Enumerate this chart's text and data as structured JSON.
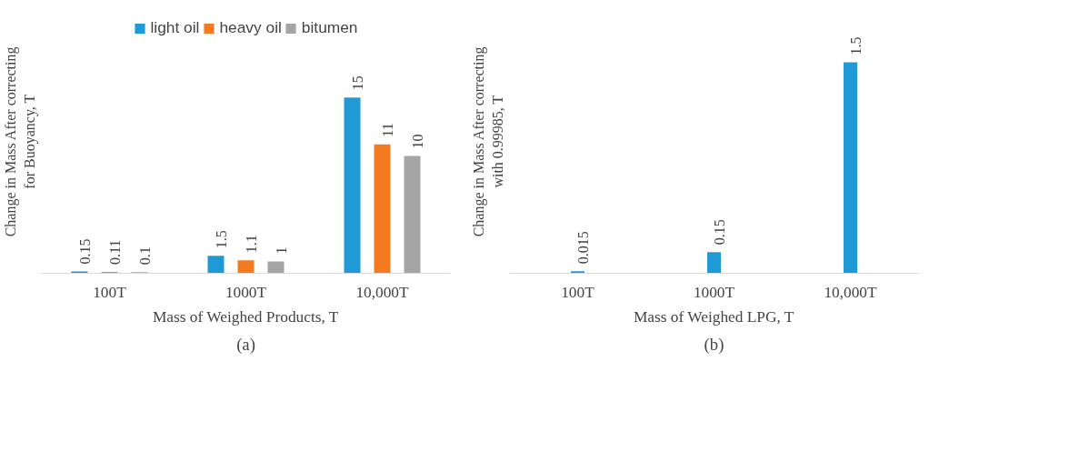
{
  "chart_data": [
    {
      "type": "bar",
      "categories": [
        "100T",
        "1000T",
        "10,000T"
      ],
      "xlabel": "Mass of Weighed Products, T",
      "ylabel": "Change in Mass After correcting for Buoyancy, T",
      "legend": "top",
      "data_labels": true,
      "annotations": [
        "(a)"
      ],
      "series": [
        {
          "name": "light oil",
          "color": "#1f9ad6",
          "values": [
            0.15,
            1.5,
            15
          ]
        },
        {
          "name": "heavy oil",
          "color": "#f47a20",
          "values": [
            0.11,
            1.1,
            11
          ]
        },
        {
          "name": "bitumen",
          "color": "#a5a5a5",
          "values": [
            0.1,
            1,
            10
          ]
        }
      ]
    },
    {
      "type": "bar",
      "categories": [
        "100T",
        "1000T",
        "10,000T"
      ],
      "xlabel": "Mass of Weighed LPG, T",
      "ylabel": "Change in Mass After correcting with 0.99985, T",
      "data_labels": true,
      "annotations": [
        "(b)"
      ],
      "series": [
        {
          "color": "#1f9ad6",
          "values": [
            0.015,
            0.15,
            1.5
          ]
        }
      ]
    }
  ]
}
